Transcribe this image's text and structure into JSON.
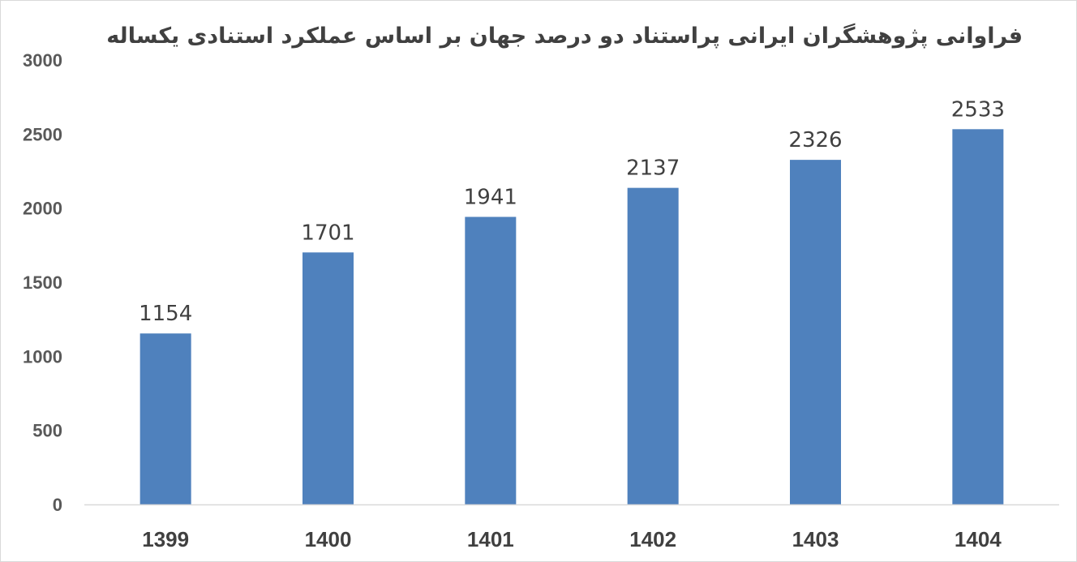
{
  "chart_data": {
    "type": "bar",
    "title": "فراوانی پژوهشگران ایرانی پراستناد دو درصد جهان بر اساس عملکرد استنادی یکساله",
    "categories": [
      "1399",
      "1400",
      "1401",
      "1402",
      "1403",
      "1404"
    ],
    "values": [
      1154,
      1701,
      1941,
      2137,
      2326,
      2533
    ],
    "data_labels": [
      "1154",
      "1701",
      "1941",
      "2137",
      "2326",
      "2533"
    ],
    "ylim": [
      0,
      3000
    ],
    "yticks": [
      "0",
      "500",
      "1000",
      "1500",
      "2000",
      "2500",
      "3000"
    ],
    "grid": false,
    "legend": "none",
    "bar_color": "#4F81BD",
    "axis_color": "#d9d9d9"
  }
}
